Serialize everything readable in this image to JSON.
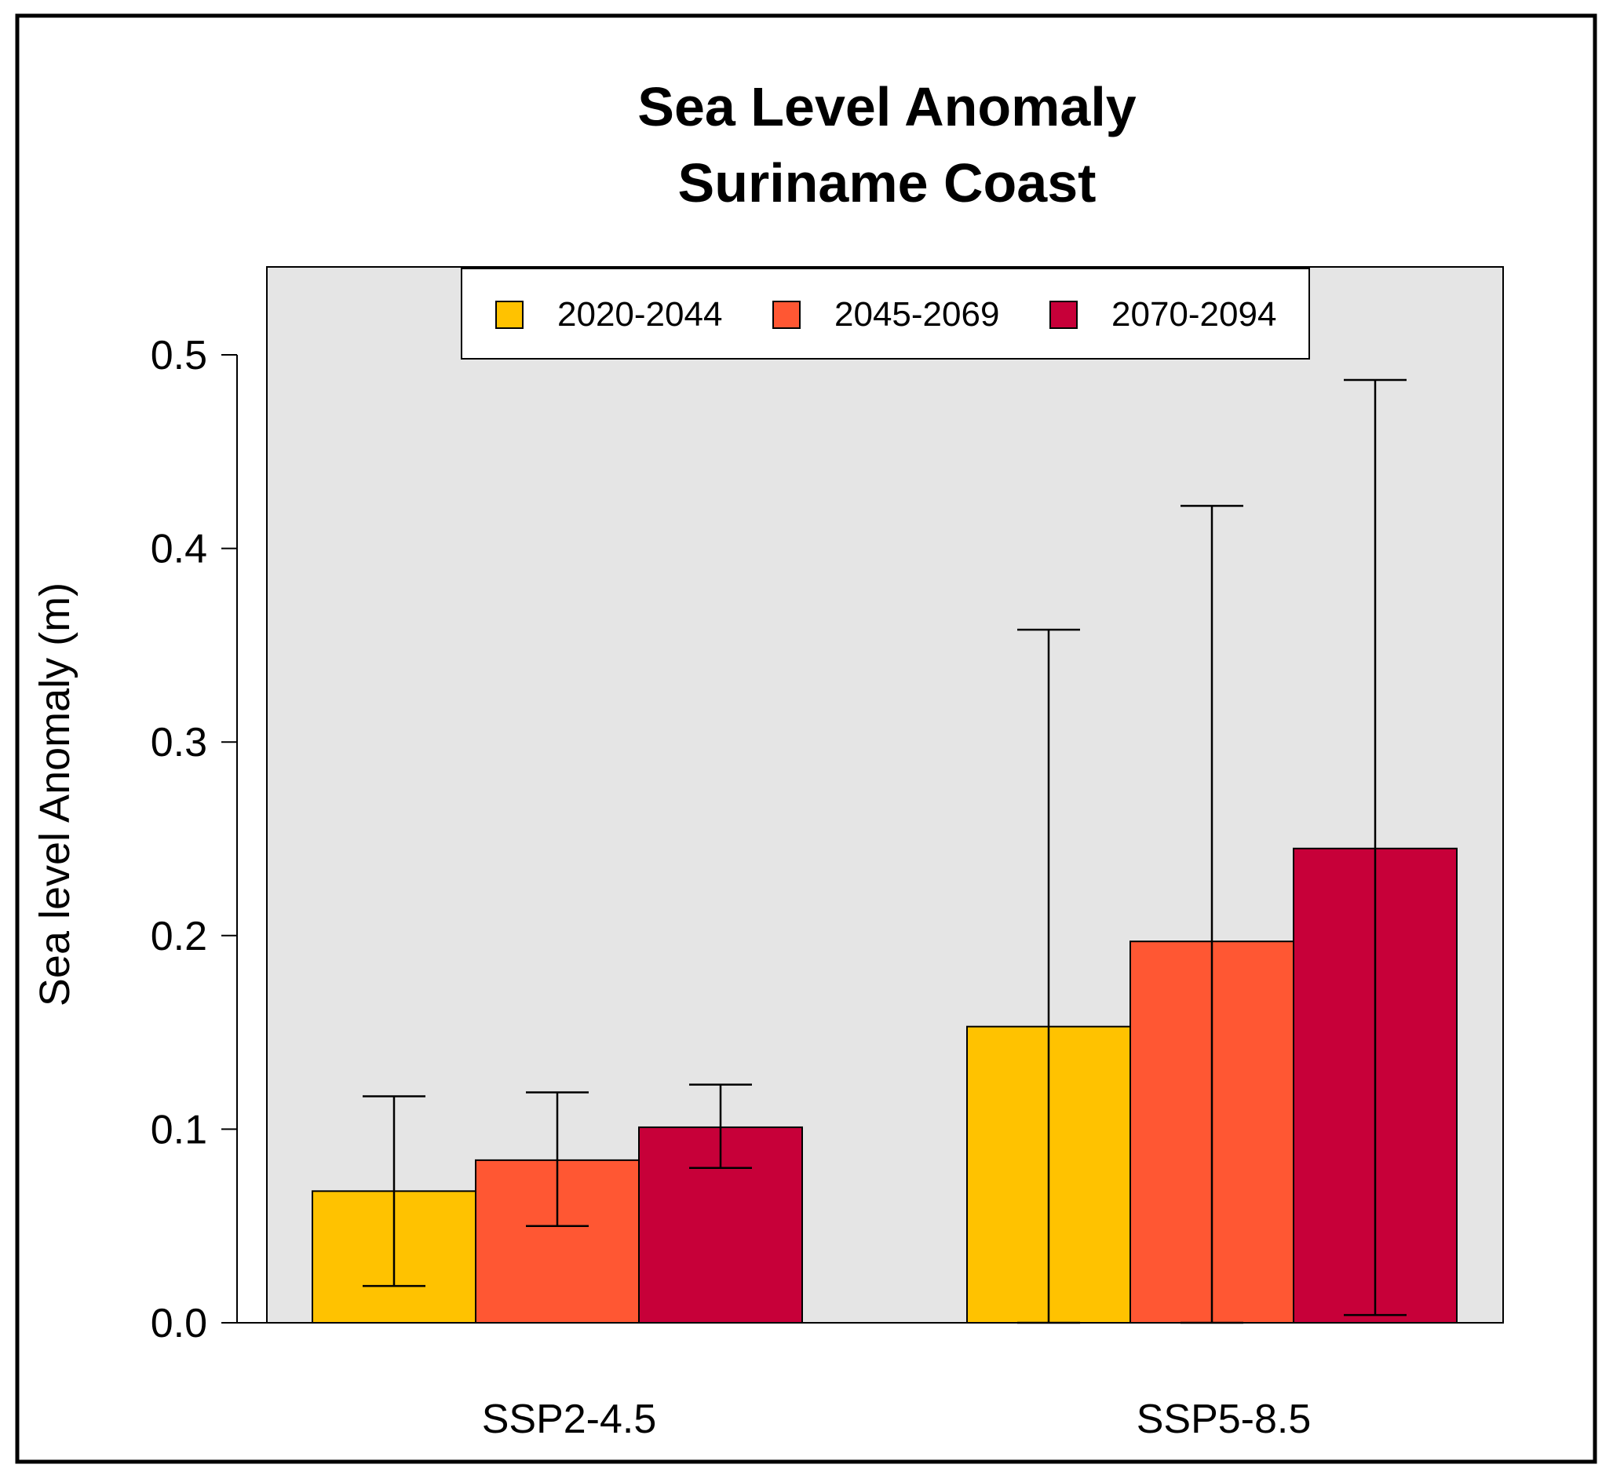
{
  "chart_data": {
    "type": "bar",
    "title": "Sea Level Anomaly",
    "subtitle": "Suriname Coast",
    "xlabel": "",
    "ylabel": "Sea level Anomaly (m)",
    "ylim": [
      0,
      0.55
    ],
    "yticks": [
      "0.0",
      "0.1",
      "0.2",
      "0.3",
      "0.4",
      "0.5"
    ],
    "categories": [
      "SSP2-4.5",
      "SSP5-8.5"
    ],
    "legend_position": "top-center",
    "series": [
      {
        "name": "2020-2044",
        "color": "#FFC200",
        "values": [
          0.068,
          0.153
        ],
        "err_low": [
          0.019,
          0.0
        ],
        "err_high": [
          0.117,
          0.358
        ]
      },
      {
        "name": "2045-2069",
        "color": "#FF5733",
        "values": [
          0.084,
          0.197
        ],
        "err_low": [
          0.05,
          0.0
        ],
        "err_high": [
          0.119,
          0.422
        ]
      },
      {
        "name": "2070-2094",
        "color": "#C70039",
        "values": [
          0.101,
          0.245
        ],
        "err_low": [
          0.08,
          0.004
        ],
        "err_high": [
          0.123,
          0.487
        ]
      }
    ]
  }
}
